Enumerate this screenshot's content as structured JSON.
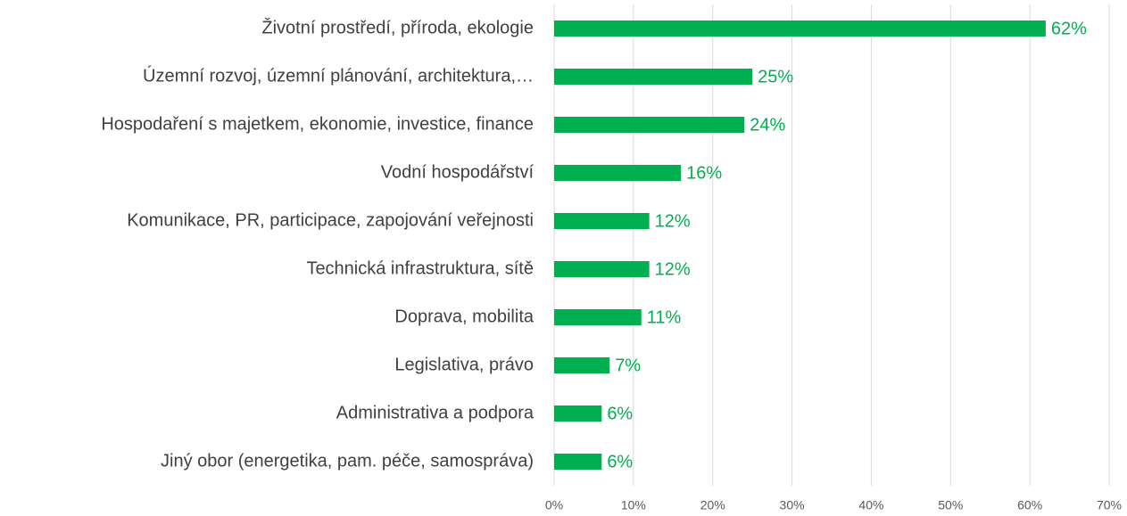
{
  "chart_data": {
    "type": "bar",
    "orientation": "horizontal",
    "categories": [
      "Životní prostředí, příroda, ekologie",
      "Územní rozvoj, územní plánování, architektura,…",
      "Hospodaření s majetkem, ekonomie, investice, finance",
      "Vodní hospodářství",
      "Komunikace, PR, participace, zapojování veřejnosti",
      "Technická infrastruktura, sítě",
      "Doprava, mobilita",
      "Legislativa, právo",
      "Administrativa a podpora",
      "Jiný obor (energetika, pam. péče, samospráva)"
    ],
    "values": [
      62,
      25,
      24,
      16,
      12,
      12,
      11,
      7,
      6,
      6
    ],
    "value_labels": [
      "62%",
      "25%",
      "24%",
      "16%",
      "12%",
      "12%",
      "11%",
      "7%",
      "6%",
      "6%"
    ],
    "color": "#00b050",
    "xlim": [
      0,
      70
    ],
    "xticks": [
      {
        "value": 0,
        "label": "0%"
      },
      {
        "value": 10,
        "label": "10%"
      },
      {
        "value": 20,
        "label": "20%"
      },
      {
        "value": 30,
        "label": "30%"
      },
      {
        "value": 40,
        "label": "40%"
      },
      {
        "value": 50,
        "label": "50%"
      },
      {
        "value": 60,
        "label": "60%"
      },
      {
        "value": 70,
        "label": "70%"
      }
    ],
    "grid": true
  }
}
